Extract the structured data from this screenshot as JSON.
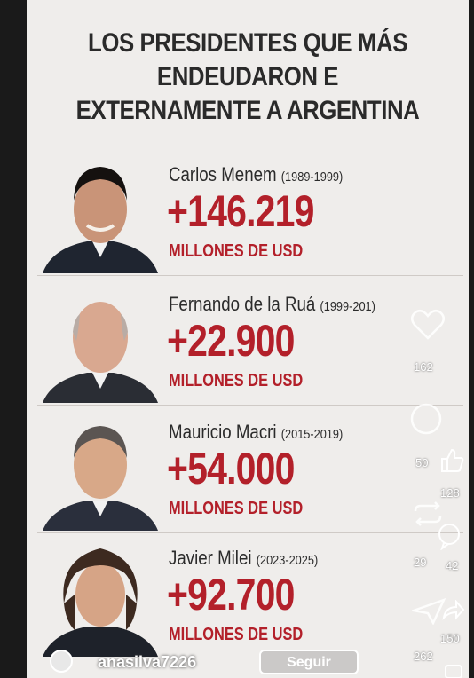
{
  "title": {
    "line1": "LOS PRESIDENTES QUE MÁS",
    "line2": "ENDEUDARON E",
    "line3": "EXTERNAMENTE A ARGENTINA"
  },
  "presidents": [
    {
      "name": "Carlos Menem",
      "years": "(1989-1999)",
      "amount": "+146.219",
      "unit": "MILLONES DE USD"
    },
    {
      "name": "Fernando de la Ruá",
      "years": "(1999-201)",
      "amount": "+22.900",
      "unit": "MILLONES DE USD"
    },
    {
      "name": "Mauricio Macri",
      "years": "(2015-2019)",
      "amount": "+54.000",
      "unit": "MILLONES DE USD"
    },
    {
      "name": "Javier Milei",
      "years": "(2023-2025)",
      "amount": "+92.700",
      "unit": "MILLONES DE USD"
    }
  ],
  "overlay": {
    "like_count": "162",
    "comment_count": "50",
    "thumbs_count": "128",
    "repost_count": "29",
    "reply_count": "42",
    "share_count": "150",
    "extra_count": "262",
    "username": "anasilva7226",
    "follow_label": "Seguir"
  },
  "colors": {
    "amount": "#b3202a",
    "background": "#efedeb",
    "title": "#2a2a2a"
  }
}
